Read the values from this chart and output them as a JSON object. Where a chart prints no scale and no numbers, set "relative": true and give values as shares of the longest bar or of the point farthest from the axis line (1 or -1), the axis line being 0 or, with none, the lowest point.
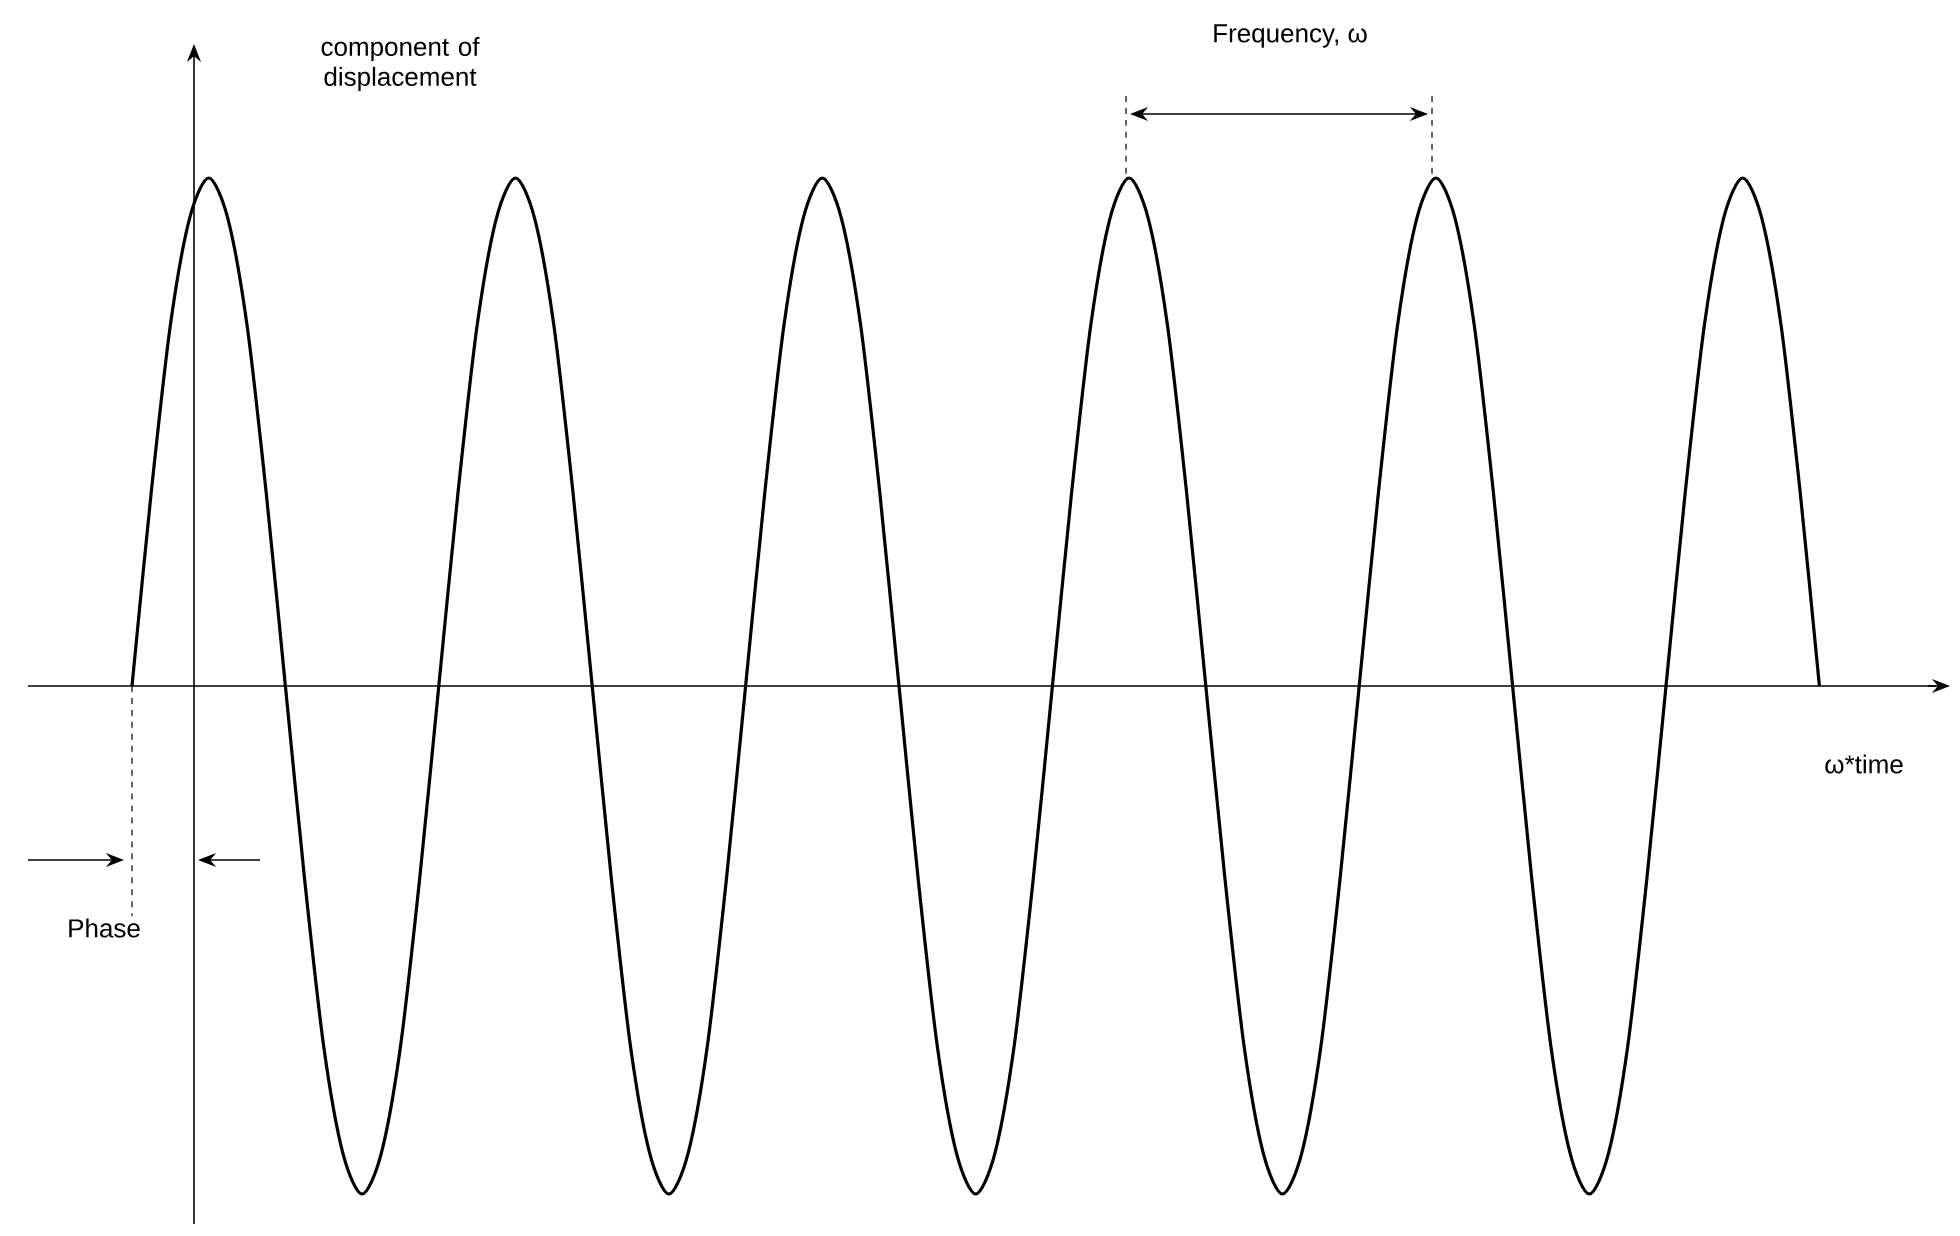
{
  "chart_data": {
    "type": "line",
    "relative": true,
    "xlabel": "ω*time",
    "ylabel": "component of displacement",
    "categories": [
      null,
      null,
      null,
      null,
      null,
      null,
      null,
      null,
      null,
      null,
      null,
      null,
      null,
      null,
      null,
      null,
      null,
      null,
      null,
      null,
      null,
      null,
      null,
      null,
      null,
      null,
      null,
      null,
      null,
      null,
      null,
      null,
      null,
      null,
      null,
      null,
      null,
      null,
      null,
      null,
      null,
      null,
      null,
      null,
      null,
      null,
      null,
      null,
      null,
      null,
      null,
      null,
      null,
      null,
      null,
      null,
      null,
      null,
      null,
      null,
      null,
      null,
      null,
      null,
      null,
      null,
      null,
      null,
      null,
      null,
      null,
      null,
      null,
      null,
      null,
      null,
      null,
      null,
      null,
      null,
      null,
      null,
      null,
      null,
      null,
      null,
      null,
      null,
      null
    ],
    "values": [
      0,
      0.38,
      0.71,
      0.92,
      1,
      0.92,
      0.71,
      0.38,
      0,
      -0.38,
      -0.71,
      -0.92,
      -1,
      -0.92,
      -0.71,
      -0.38,
      0,
      0.38,
      0.71,
      0.92,
      1,
      0.92,
      0.71,
      0.38,
      0,
      -0.38,
      -0.71,
      -0.92,
      -1,
      -0.92,
      -0.71,
      -0.38,
      0,
      0.38,
      0.71,
      0.92,
      1,
      0.92,
      0.71,
      0.38,
      0,
      -0.38,
      -0.71,
      -0.92,
      -1,
      -0.92,
      -0.71,
      -0.38,
      0,
      0.38,
      0.71,
      0.92,
      1,
      0.92,
      0.71,
      0.38,
      0,
      -0.38,
      -0.71,
      -0.92,
      -1,
      -0.92,
      -0.71,
      -0.38,
      0,
      0.38,
      0.71,
      0.92,
      1,
      0.92,
      0.71,
      0.38,
      0,
      -0.38,
      -0.71,
      -0.92,
      -1,
      -0.92,
      -0.71,
      -0.38,
      0,
      0.38,
      0.71,
      0.92,
      1,
      0.92,
      0.71,
      0.38,
      0
    ],
    "color": "#000000",
    "line_style": "solid",
    "annotations": [
      "Frequency, ω",
      "Phase"
    ]
  }
}
